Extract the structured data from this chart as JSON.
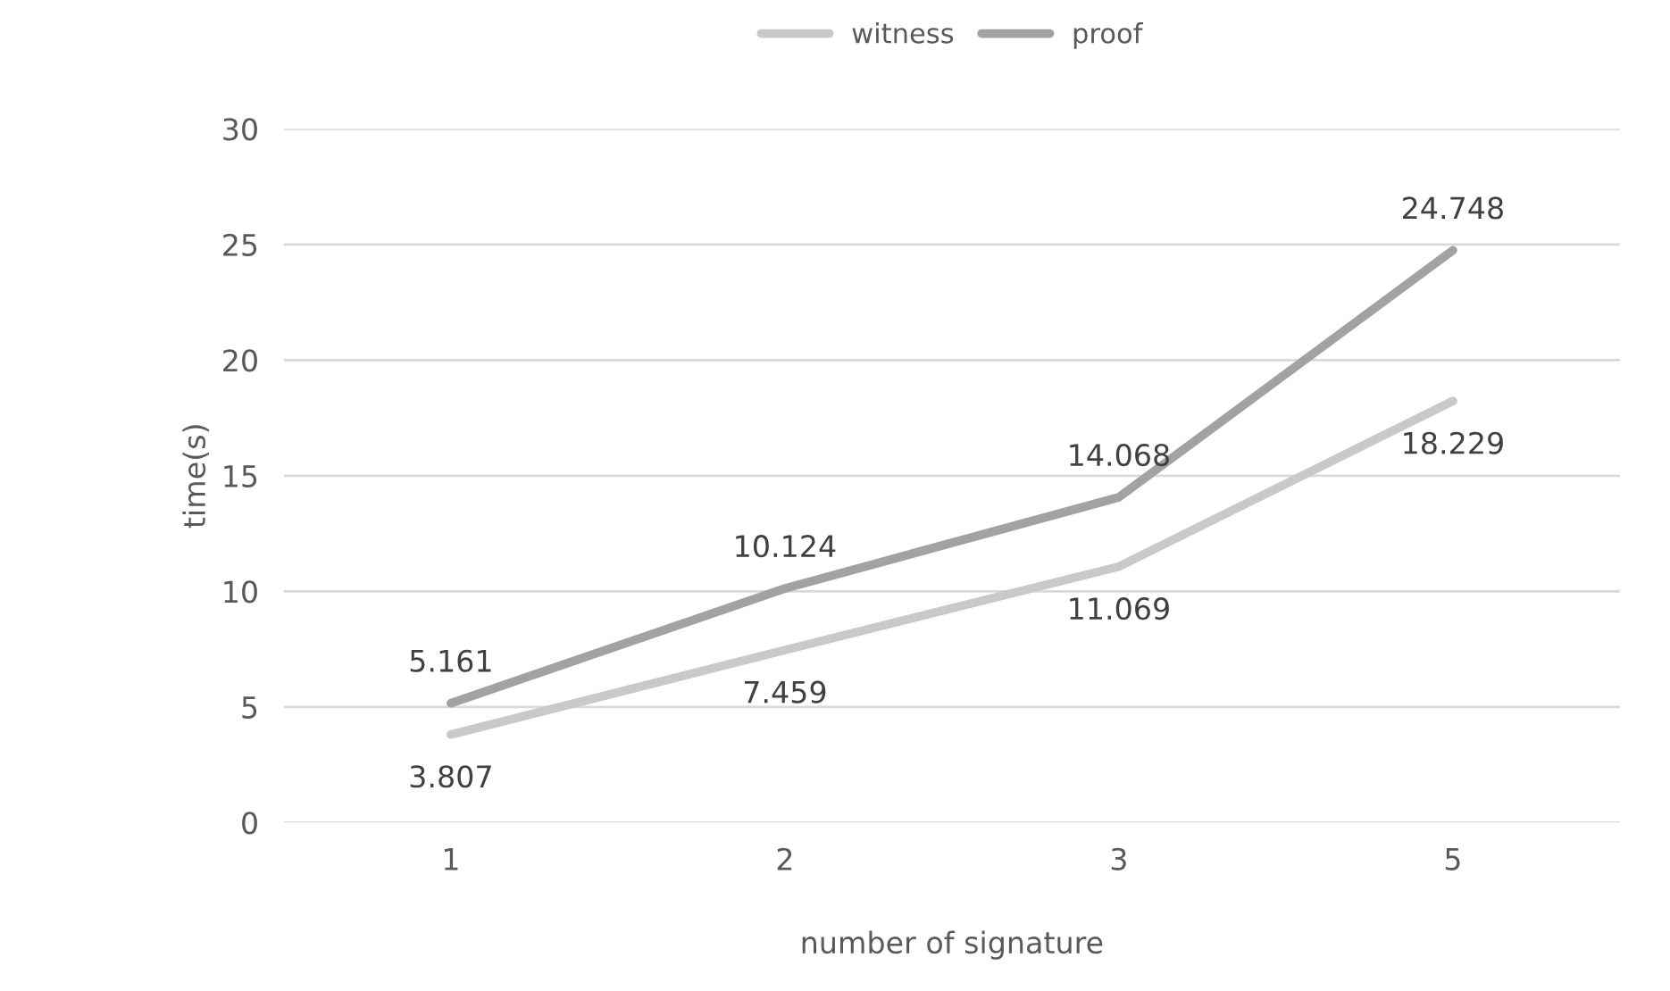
{
  "chart_data": {
    "type": "line",
    "xlabel": "number of signature",
    "ylabel": "time(s)",
    "categories": [
      "1",
      "2",
      "3",
      "5"
    ],
    "series": [
      {
        "name": "witness",
        "color": "#c9c9c9",
        "values": [
          3.807,
          7.459,
          11.069,
          18.229
        ]
      },
      {
        "name": "proof",
        "color": "#a2a2a2",
        "values": [
          5.161,
          10.124,
          14.068,
          24.748
        ]
      }
    ],
    "ylim": [
      0,
      30
    ],
    "yticks": [
      0,
      5,
      10,
      15,
      20,
      25,
      30
    ],
    "grid": "y",
    "legend": "top",
    "data_labels": true,
    "marker": "none",
    "line_style": "solid"
  }
}
